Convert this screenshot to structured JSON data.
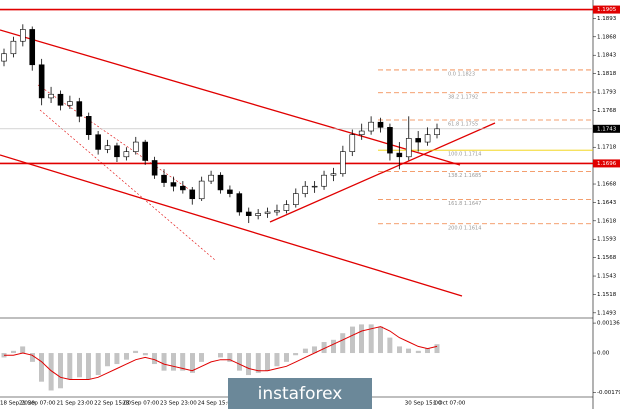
{
  "chart_data": {
    "type": "candlestick",
    "ylim": [
      1.1486,
      1.1918
    ],
    "yticks": [
      1.1893,
      1.1868,
      1.1843,
      1.1818,
      1.1793,
      1.1768,
      1.1718,
      1.1668,
      1.1643,
      1.1618,
      1.1593,
      1.1568,
      1.1543,
      1.1518,
      1.1493
    ],
    "categories": [
      "18 Sep 2020",
      null,
      "21 Sep 07:00",
      null,
      null,
      null,
      "21 Sep 23:00",
      null,
      null,
      null,
      "22 Sep 15:00",
      null,
      null,
      "23 Sep 07:00",
      null,
      null,
      null,
      "23 Sep 23:00",
      null,
      null,
      null,
      "24 Sep 15:00",
      null,
      null,
      null,
      null,
      null,
      null,
      null,
      null,
      null,
      null,
      null,
      null,
      null,
      null,
      null,
      null,
      null,
      null,
      null,
      null,
      null,
      "30 Sep 15:00",
      null,
      null,
      "1 Oct 07:00"
    ],
    "ohlc": [
      [
        1.1835,
        1.1852,
        1.1828,
        1.1845
      ],
      [
        1.1845,
        1.1868,
        1.184,
        1.1862
      ],
      [
        1.1862,
        1.1885,
        1.1855,
        1.1878
      ],
      [
        1.1878,
        1.1882,
        1.1822,
        1.183
      ],
      [
        1.183,
        1.1838,
        1.1775,
        1.1785
      ],
      [
        1.1785,
        1.18,
        1.1778,
        1.179
      ],
      [
        1.179,
        1.1795,
        1.1768,
        1.1775
      ],
      [
        1.1775,
        1.1788,
        1.177,
        1.178
      ],
      [
        1.178,
        1.1785,
        1.1752,
        1.176
      ],
      [
        1.176,
        1.1765,
        1.1728,
        1.1735
      ],
      [
        1.1735,
        1.174,
        1.1708,
        1.1715
      ],
      [
        1.1715,
        1.1728,
        1.171,
        1.172
      ],
      [
        1.172,
        1.1724,
        1.1698,
        1.1705
      ],
      [
        1.1705,
        1.1718,
        1.17,
        1.1712
      ],
      [
        1.1712,
        1.1732,
        1.1708,
        1.1725
      ],
      [
        1.1725,
        1.1728,
        1.1694,
        1.17
      ],
      [
        1.17,
        1.1705,
        1.1675,
        1.168
      ],
      [
        1.168,
        1.1688,
        1.1664,
        1.167
      ],
      [
        1.167,
        1.1678,
        1.1658,
        1.1665
      ],
      [
        1.1665,
        1.1672,
        1.1655,
        1.166
      ],
      [
        1.166,
        1.1664,
        1.164,
        1.1648
      ],
      [
        1.1648,
        1.1678,
        1.1645,
        1.1672
      ],
      [
        1.1672,
        1.1686,
        1.1668,
        1.168
      ],
      [
        1.168,
        1.1684,
        1.1655,
        1.166
      ],
      [
        1.166,
        1.1666,
        1.165,
        1.1655
      ],
      [
        1.1655,
        1.1658,
        1.1625,
        1.163
      ],
      [
        1.163,
        1.1636,
        1.1615,
        1.1625
      ],
      [
        1.1625,
        1.1634,
        1.162,
        1.1628
      ],
      [
        1.1628,
        1.1636,
        1.1622,
        1.163
      ],
      [
        1.163,
        1.164,
        1.1625,
        1.1632
      ],
      [
        1.1632,
        1.1646,
        1.1628,
        1.164
      ],
      [
        1.164,
        1.1662,
        1.1636,
        1.1655
      ],
      [
        1.1655,
        1.1672,
        1.165,
        1.1665
      ],
      [
        1.1665,
        1.1672,
        1.1656,
        1.1665
      ],
      [
        1.1665,
        1.1686,
        1.166,
        1.168
      ],
      [
        1.168,
        1.169,
        1.1672,
        1.1682
      ],
      [
        1.1682,
        1.172,
        1.1678,
        1.1712
      ],
      [
        1.1712,
        1.1742,
        1.1706,
        1.1735
      ],
      [
        1.1735,
        1.175,
        1.1728,
        1.174
      ],
      [
        1.174,
        1.176,
        1.1735,
        1.1752
      ],
      [
        1.1752,
        1.1758,
        1.1738,
        1.1745
      ],
      [
        1.1745,
        1.175,
        1.17,
        1.171
      ],
      [
        1.171,
        1.1725,
        1.1688,
        1.1705
      ],
      [
        1.1705,
        1.176,
        1.17,
        1.173
      ],
      [
        1.173,
        1.174,
        1.1712,
        1.1725
      ],
      [
        1.1725,
        1.1745,
        1.172,
        1.1735
      ],
      [
        1.1735,
        1.175,
        1.173,
        1.1743
      ]
    ],
    "levels": [
      {
        "value": 1.1905,
        "label": "1.1905",
        "color": "#e00000"
      },
      {
        "value": 1.1696,
        "label": "1.1696",
        "color": "#e00000"
      },
      {
        "value": 1.1743,
        "label": "1.1743",
        "color": "#000000"
      }
    ],
    "fib_levels": [
      {
        "value": 1.1823,
        "label": "0.0 1.1823"
      },
      {
        "value": 1.1792,
        "label": "38.2 1.1792"
      },
      {
        "value": 1.1755,
        "label": "61.8 1.1755"
      },
      {
        "value": 1.1714,
        "label": "100.0 1.1714"
      },
      {
        "value": 1.1685,
        "label": "138.2 1.1685"
      },
      {
        "value": 1.1647,
        "label": "161.8 1.1647"
      },
      {
        "value": 1.1614,
        "label": "200.0 1.1614"
      }
    ],
    "oscillator": {
      "ylim": [
        -0.00195,
        0.0015
      ],
      "yticks": [
        0.00136,
        {
          "value": 0,
          "label": "0.00"
        },
        -0.00179
      ],
      "histogram": [
        -0.0002,
        0.0001,
        0.0003,
        -0.0004,
        -0.0013,
        -0.0017,
        -0.0016,
        -0.0012,
        -0.0011,
        -0.0012,
        -0.001,
        -0.0006,
        -0.0005,
        -0.0003,
        0.0001,
        -0.0001,
        -0.0005,
        -0.0008,
        -0.0008,
        -0.0008,
        -0.0009,
        -0.0004,
        0,
        -0.0002,
        -0.0004,
        -0.0008,
        -0.001,
        -0.0009,
        -0.0008,
        -0.0006,
        -0.0004,
        -0.0001,
        0.0002,
        0.0003,
        0.0005,
        0.0006,
        0.0009,
        0.0012,
        0.0013,
        0.0013,
        0.0012,
        0.0007,
        0.0003,
        0.0002,
        0.0001,
        0.0002,
        0.0004
      ],
      "signal": [
        -0.0001,
        -0.0001,
        0,
        -0.0001,
        -0.0004,
        -0.0008,
        -0.0011,
        -0.0012,
        -0.0012,
        -0.0012,
        -0.0011,
        -0.0009,
        -0.0007,
        -0.0005,
        -0.0003,
        -0.0002,
        -0.0003,
        -0.0005,
        -0.0006,
        -0.0007,
        -0.0008,
        -0.0006,
        -0.0004,
        -0.0003,
        -0.0003,
        -0.0005,
        -0.0007,
        -0.0008,
        -0.0008,
        -0.0007,
        -0.0006,
        -0.0004,
        -0.0002,
        0,
        0.0002,
        0.0004,
        0.0006,
        0.0008,
        0.001,
        0.0011,
        0.0012,
        0.001,
        0.0007,
        0.0005,
        0.0003,
        0.0002,
        0.0003
      ],
      "signal_color": "#e00000"
    },
    "watermark": "instaforex"
  }
}
